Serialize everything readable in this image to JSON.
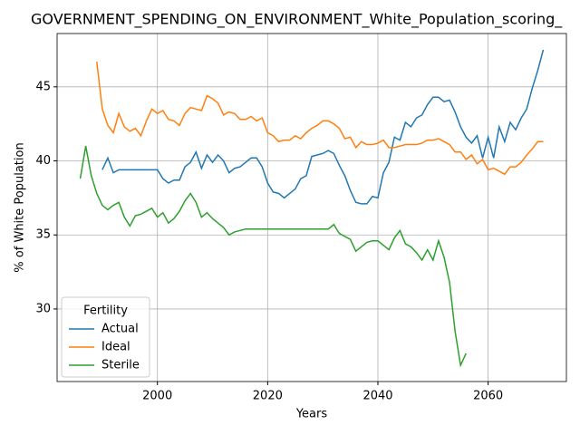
{
  "chart_data": {
    "type": "line",
    "title": "GOVERNMENT_SPENDING_ON_ENVIRONMENT_White_Population_scoring_",
    "xlabel": "Years",
    "ylabel": "% of White Population",
    "x": [
      1986,
      1987,
      1988,
      1989,
      1990,
      1991,
      1992,
      1993,
      1994,
      1995,
      1996,
      1997,
      1998,
      1999,
      2000,
      2001,
      2002,
      2003,
      2004,
      2005,
      2006,
      2007,
      2008,
      2009,
      2010,
      2011,
      2012,
      2013,
      2014,
      2015,
      2016,
      2017,
      2018,
      2019,
      2020,
      2021,
      2022,
      2023,
      2024,
      2025,
      2026,
      2027,
      2028,
      2029,
      2030,
      2031,
      2032,
      2033,
      2034,
      2035,
      2036,
      2037,
      2038,
      2039,
      2040,
      2041,
      2042,
      2043,
      2044,
      2045,
      2046,
      2047,
      2048,
      2049,
      2050,
      2051,
      2052,
      2053,
      2054,
      2055,
      2056,
      2057,
      2058,
      2059,
      2060,
      2061,
      2062,
      2063,
      2064,
      2065,
      2066,
      2067,
      2068,
      2069,
      2070
    ],
    "series": [
      {
        "name": "Actual",
        "color": "#1f77b4",
        "values": [
          null,
          null,
          null,
          null,
          39.4,
          40.2,
          39.2,
          39.4,
          39.4,
          39.4,
          39.4,
          39.4,
          39.4,
          39.4,
          39.4,
          38.8,
          38.5,
          38.7,
          38.7,
          39.6,
          39.9,
          40.6,
          39.5,
          40.4,
          39.9,
          40.4,
          40.0,
          39.2,
          39.5,
          39.6,
          39.9,
          40.2,
          40.2,
          39.6,
          38.5,
          37.9,
          37.8,
          37.5,
          37.8,
          38.1,
          38.8,
          39.0,
          40.3,
          40.4,
          40.5,
          40.7,
          40.5,
          39.7,
          39.0,
          38.0,
          37.2,
          37.1,
          37.1,
          37.6,
          37.5,
          39.2,
          39.9,
          41.6,
          41.4,
          42.6,
          42.3,
          42.9,
          43.1,
          43.8,
          44.3,
          44.3,
          44.0,
          44.1,
          43.3,
          42.3,
          41.6,
          41.2,
          41.7,
          40.2,
          41.6,
          40.2,
          42.3,
          41.3,
          42.6,
          42.1,
          42.9,
          43.5,
          44.9,
          46.1,
          47.5
        ]
      },
      {
        "name": "Ideal",
        "color": "#ff7f0e",
        "values": [
          null,
          null,
          null,
          46.7,
          43.5,
          42.4,
          41.9,
          43.2,
          42.3,
          42.0,
          42.2,
          41.7,
          42.7,
          43.5,
          43.2,
          43.4,
          42.8,
          42.7,
          42.4,
          43.2,
          43.6,
          43.5,
          43.4,
          44.4,
          44.2,
          43.9,
          43.1,
          43.3,
          43.2,
          42.8,
          42.8,
          43.0,
          42.7,
          42.9,
          41.9,
          41.7,
          41.3,
          41.4,
          41.4,
          41.7,
          41.5,
          41.9,
          42.2,
          42.4,
          42.7,
          42.7,
          42.5,
          42.2,
          41.5,
          41.6,
          40.9,
          41.3,
          41.1,
          41.1,
          41.2,
          41.4,
          40.9,
          40.9,
          41.0,
          41.1,
          41.1,
          41.1,
          41.2,
          41.4,
          41.4,
          41.5,
          41.3,
          41.1,
          40.6,
          40.6,
          40.1,
          40.4,
          39.8,
          40.1,
          39.4,
          39.5,
          39.3,
          39.1,
          39.6,
          39.6,
          39.9,
          40.4,
          40.8,
          41.3,
          41.3
        ]
      },
      {
        "name": "Sterile",
        "color": "#2ca02c",
        "values": [
          38.8,
          41.0,
          39.0,
          37.8,
          37.0,
          36.7,
          37.0,
          37.2,
          36.2,
          35.6,
          36.3,
          36.4,
          36.6,
          36.8,
          36.2,
          36.5,
          35.8,
          36.1,
          36.6,
          37.3,
          37.8,
          37.2,
          36.2,
          36.5,
          36.1,
          35.8,
          35.5,
          35.0,
          35.2,
          35.3,
          35.4,
          35.4,
          35.4,
          35.4,
          35.4,
          35.4,
          35.4,
          35.4,
          35.4,
          35.4,
          35.4,
          35.4,
          35.4,
          35.4,
          35.4,
          35.4,
          35.7,
          35.1,
          34.9,
          34.7,
          33.9,
          34.2,
          34.5,
          34.6,
          34.6,
          34.3,
          34.0,
          34.8,
          35.3,
          34.4,
          34.2,
          33.8,
          33.3,
          34.0,
          33.3,
          34.6,
          33.5,
          31.8,
          28.5,
          26.2,
          27.0,
          null,
          null,
          null,
          null,
          null,
          null,
          null,
          null,
          null,
          null,
          null,
          null,
          null,
          null
        ]
      }
    ],
    "xlim": [
      1981.8,
      2074.2
    ],
    "ylim": [
      25.1,
      48.6
    ],
    "xticks": [
      2000,
      2020,
      2040,
      2060
    ],
    "yticks": [
      30,
      35,
      40,
      45
    ],
    "grid": true,
    "legend_title": "Fertility",
    "legend_loc": "lower left"
  }
}
